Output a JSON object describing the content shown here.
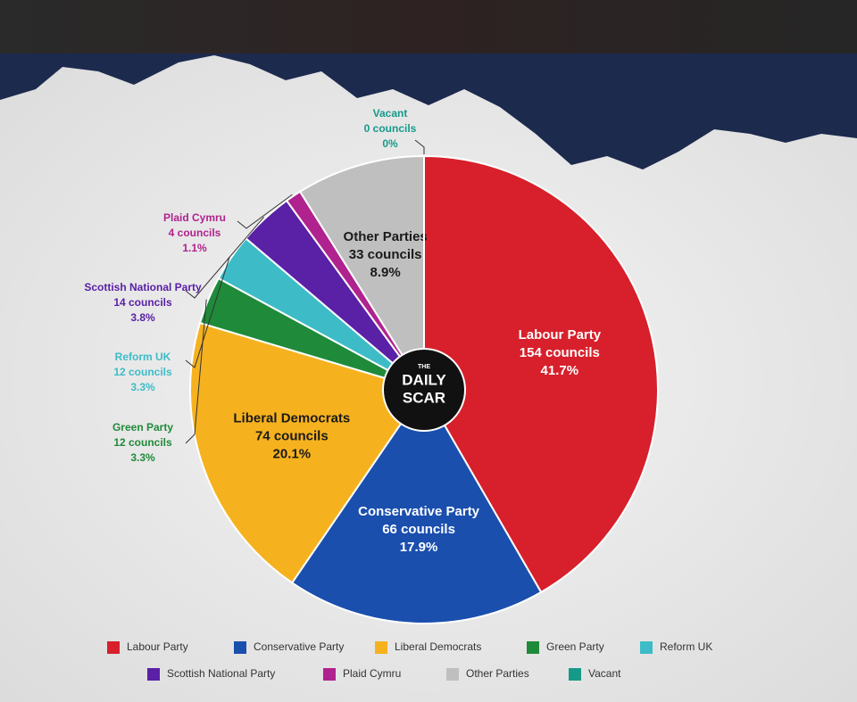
{
  "chart_data": {
    "type": "pie",
    "categories": [
      "Labour Party",
      "Conservative Party",
      "Liberal Democrats",
      "Green Party",
      "Reform UK",
      "Scottish National Party",
      "Plaid Cymru",
      "Other Parties",
      "Vacant"
    ],
    "values": [
      41.7,
      17.9,
      20.1,
      3.3,
      3.3,
      3.8,
      1.1,
      8.9,
      0
    ],
    "value_labels": [
      "41.7%",
      "17.9%",
      "20.1%",
      "3.3%",
      "3.3%",
      "3.8%",
      "1.1%",
      "8.9%",
      "0%"
    ],
    "council_labels": [
      "154 councils",
      "66 councils",
      "74 councils",
      "12 councils",
      "12 councils",
      "14 councils",
      "4 councils",
      "33 councils",
      "0 councils"
    ],
    "colors": [
      "#d7202b",
      "#1a4fae",
      "#f6b21e",
      "#1f8a3a",
      "#3dbcc7",
      "#5a20a6",
      "#b0228e",
      "#bfbfbf",
      "#17998a"
    ],
    "logo": {
      "top": "THE",
      "line1": "DAILY",
      "line2": "SCAR"
    }
  }
}
